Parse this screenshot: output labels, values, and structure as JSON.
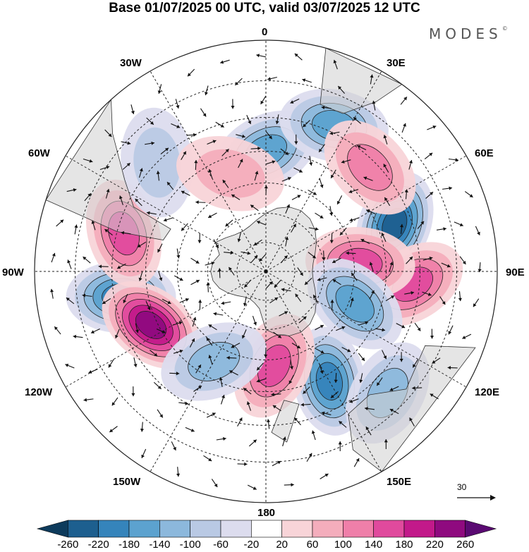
{
  "title": "Base 01/07/2025 00 UTC, valid 03/07/2025 12 UTC",
  "brand": "MODES",
  "brand_mark": "©",
  "longitude_labels": {
    "lon_0": "0",
    "lon_30e": "30E",
    "lon_60e": "60E",
    "lon_90e": "90E",
    "lon_120e": "120E",
    "lon_150e": "150E",
    "lon_180": "180",
    "lon_150w": "150W",
    "lon_120w": "120W",
    "lon_90w": "90W",
    "lon_60w": "60W",
    "lon_30w": "30W"
  },
  "vector_reference": "30",
  "colorbar": {
    "colors": [
      "#0d3b5c",
      "#1d5f8f",
      "#3584bb",
      "#5ca2cf",
      "#8cb8dc",
      "#b9c9e4",
      "#dcdcee",
      "#ffffff",
      "#f8d4d8",
      "#f4adbc",
      "#ef7fa9",
      "#e04a9d",
      "#c2198a",
      "#8f0a7f",
      "#5a0a72"
    ],
    "tick_labels": [
      "-260",
      "-220",
      "-180",
      "-140",
      "-100",
      "-60",
      "-20",
      "20",
      "60",
      "100",
      "140",
      "180",
      "220",
      "260"
    ]
  },
  "icons": {
    "map": "polar-stereographic-map",
    "arrow": "wind-vector-arrow"
  },
  "chart_data": {
    "type": "heatmap",
    "projection": "south polar stereographic",
    "field": "anomaly (shaded) with wind vectors",
    "color_levels": [
      -260,
      -220,
      -180,
      -140,
      -100,
      -60,
      -20,
      20,
      60,
      100,
      140,
      180,
      220,
      260
    ],
    "anomaly_centers": [
      {
        "lon": -100,
        "lat": -42,
        "value": -190
      },
      {
        "lon": -115,
        "lat": -48,
        "value": 200
      },
      {
        "lon": -75,
        "lat": -42,
        "value": 150
      },
      {
        "lon": 70,
        "lat": -45,
        "value": -200
      },
      {
        "lon": 95,
        "lat": -42,
        "value": 150
      },
      {
        "lon": 85,
        "lat": -58,
        "value": 120
      },
      {
        "lon": 110,
        "lat": -58,
        "value": -130
      },
      {
        "lon": 150,
        "lat": -48,
        "value": -160
      },
      {
        "lon": 175,
        "lat": -58,
        "value": 140
      },
      {
        "lon": 0,
        "lat": -50,
        "value": -150
      },
      {
        "lon": 25,
        "lat": -38,
        "value": -120
      },
      {
        "lon": 45,
        "lat": -42,
        "value": 90
      },
      {
        "lon": -45,
        "lat": -40,
        "value": -70
      },
      {
        "lon": 135,
        "lat": -35,
        "value": -100
      },
      {
        "lon": -150,
        "lat": -55,
        "value": -90
      },
      {
        "lon": -20,
        "lat": -55,
        "value": 70
      }
    ]
  }
}
